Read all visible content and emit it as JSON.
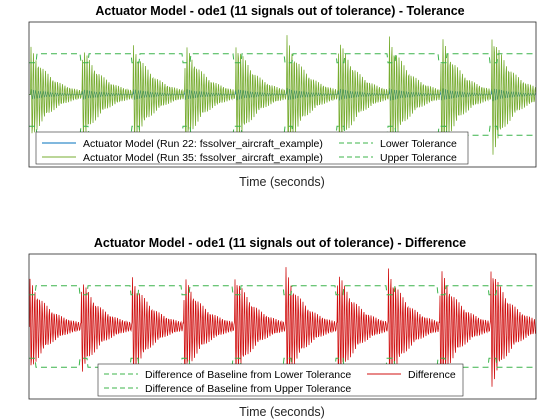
{
  "chart_data": [
    {
      "type": "line",
      "title": "Actuator Model - ode1 (11 signals out of tolerance) - Tolerance",
      "xlabel": "Time (seconds)",
      "ylabel": "",
      "xticks": [],
      "yticks": [],
      "grid": false,
      "legend_location": "bottom-center",
      "y_range": [
        -1.6,
        1.6
      ],
      "tolerance_band": [
        -0.9,
        0.9
      ],
      "pulse_count": 10,
      "series": [
        {
          "name": "Actuator Model (Run 22: fssolver_aircraft_example)",
          "color": "#0072BD",
          "style": "solid",
          "role": "baseline"
        },
        {
          "name": "Actuator Model (Run 35: fssolver_aircraft_example)",
          "color": "#77AC30",
          "style": "solid",
          "role": "compare"
        },
        {
          "name": "Lower Tolerance",
          "color": "#3CB44B",
          "style": "dashed",
          "role": "lower"
        },
        {
          "name": "Upper Tolerance",
          "color": "#3CB44B",
          "style": "dashed",
          "role": "upper"
        }
      ]
    },
    {
      "type": "line",
      "title": "Actuator Model - ode1 (11 signals out of tolerance) - Difference",
      "xlabel": "Time (seconds)",
      "ylabel": "",
      "xticks": [],
      "yticks": [],
      "grid": false,
      "legend_location": "bottom-center",
      "y_range": [
        -1.6,
        1.6
      ],
      "tolerance_band": [
        -0.9,
        0.9
      ],
      "pulse_count": 10,
      "series": [
        {
          "name": "Difference of Baseline from Lower Tolerance",
          "color": "#3CB44B",
          "style": "dashed",
          "role": "lower"
        },
        {
          "name": "Difference",
          "color": "#D01010",
          "style": "solid",
          "role": "difference"
        },
        {
          "name": "Difference of Baseline from Upper Tolerance",
          "color": "#3CB44B",
          "style": "dashed",
          "role": "upper"
        }
      ]
    }
  ]
}
